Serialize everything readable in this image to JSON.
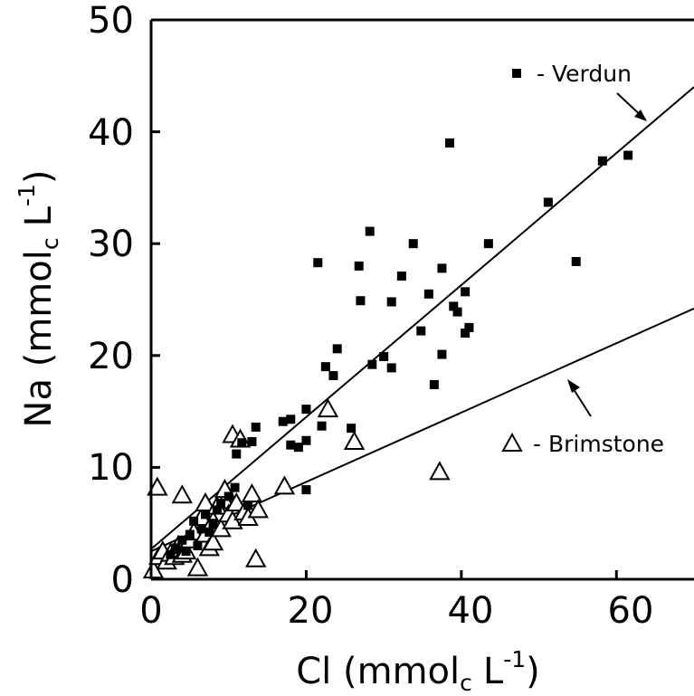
{
  "chart_data": {
    "type": "scatter",
    "xlim": [
      0,
      70
    ],
    "ylim": [
      0,
      50
    ],
    "x_ticks": [
      "0",
      "20",
      "40",
      "60"
    ],
    "y_ticks": [
      "0",
      "10",
      "20",
      "30",
      "40",
      "50"
    ],
    "xlabel": {
      "main": "Cl",
      "open": "(mmol",
      "sub": "c",
      "unit": "L",
      "sup": "-1",
      "close": ")"
    },
    "ylabel": {
      "main": "Na",
      "open": "(mmol",
      "sub": "c",
      "unit": "L",
      "sup": "-1",
      "close": ")"
    },
    "grid": false,
    "series": [
      {
        "name": "Verdun",
        "legend_label": "- Verdun",
        "marker": "filled-square",
        "color": "#000000",
        "fit": {
          "intercept": 2.7,
          "slope": 0.59
        },
        "points": [
          [
            2.5,
            2.2
          ],
          [
            3.2,
            2.8
          ],
          [
            4,
            3.5
          ],
          [
            4.5,
            2.5
          ],
          [
            5,
            4
          ],
          [
            5.5,
            5.2
          ],
          [
            6,
            3
          ],
          [
            6.5,
            4.5
          ],
          [
            7,
            5.8
          ],
          [
            7.5,
            4.2
          ],
          [
            8,
            5
          ],
          [
            8.5,
            6.2
          ],
          [
            9,
            6.8
          ],
          [
            10,
            7.4
          ],
          [
            10.8,
            8.2
          ],
          [
            11,
            11.2
          ],
          [
            11.7,
            12.2
          ],
          [
            12.5,
            6.6
          ],
          [
            13,
            12.3
          ],
          [
            13.5,
            13.6
          ],
          [
            17,
            14.1
          ],
          [
            18,
            12
          ],
          [
            18,
            14.3
          ],
          [
            19,
            11.8
          ],
          [
            20,
            12.4
          ],
          [
            20,
            15.2
          ],
          [
            20,
            8
          ],
          [
            21.5,
            28.3
          ],
          [
            22,
            13.7
          ],
          [
            22.5,
            19
          ],
          [
            23.5,
            18.2
          ],
          [
            24,
            20.6
          ],
          [
            25.8,
            13.5
          ],
          [
            26.8,
            28
          ],
          [
            27,
            24.9
          ],
          [
            28.2,
            31.1
          ],
          [
            28.5,
            19.2
          ],
          [
            30,
            19.9
          ],
          [
            31,
            18.9
          ],
          [
            31,
            24.8
          ],
          [
            32.3,
            27.1
          ],
          [
            33.8,
            30
          ],
          [
            34.8,
            22.2
          ],
          [
            35.8,
            25.5
          ],
          [
            36.5,
            17.4
          ],
          [
            37.5,
            27.8
          ],
          [
            37.5,
            20.1
          ],
          [
            38.5,
            39
          ],
          [
            39,
            24.4
          ],
          [
            39.5,
            23.9
          ],
          [
            40.5,
            25.7
          ],
          [
            40.5,
            22
          ],
          [
            41,
            22.5
          ],
          [
            43.5,
            30
          ],
          [
            51.2,
            33.7
          ],
          [
            54.8,
            28.4
          ],
          [
            58.2,
            37.4
          ],
          [
            61.5,
            37.9
          ]
        ]
      },
      {
        "name": "Brimstone",
        "legend_label": "- Brimstone",
        "marker": "open-triangle",
        "color": "#000000",
        "fit": {
          "intercept": 2.5,
          "slope": 0.31
        },
        "points": [
          [
            0.3,
            0.8
          ],
          [
            0.8,
            8.2
          ],
          [
            1,
            2
          ],
          [
            1.5,
            2.5
          ],
          [
            2,
            1.6
          ],
          [
            2.5,
            2.3
          ],
          [
            3,
            2
          ],
          [
            3.5,
            3
          ],
          [
            4,
            7.5
          ],
          [
            4,
            2.2
          ],
          [
            4.5,
            2.5
          ],
          [
            5,
            3.5
          ],
          [
            5.5,
            4.2
          ],
          [
            6,
            1
          ],
          [
            6.5,
            5.5
          ],
          [
            7,
            6.8
          ],
          [
            7,
            4
          ],
          [
            7.5,
            2.8
          ],
          [
            8,
            5.2
          ],
          [
            8,
            3.3
          ],
          [
            8.5,
            6.5
          ],
          [
            9,
            4.5
          ],
          [
            9.5,
            7
          ],
          [
            9.5,
            8
          ],
          [
            10,
            5.8
          ],
          [
            10.5,
            12.9
          ],
          [
            10.5,
            5.2
          ],
          [
            11,
            6.8
          ],
          [
            11.5,
            12.5
          ],
          [
            12,
            6
          ],
          [
            12.5,
            5.5
          ],
          [
            13,
            7.6
          ],
          [
            13.5,
            1.8
          ],
          [
            13.8,
            6.2
          ],
          [
            17.2,
            8.3
          ],
          [
            22.8,
            15.2
          ],
          [
            26.2,
            12.3
          ],
          [
            37.2,
            9.6
          ]
        ]
      }
    ]
  }
}
